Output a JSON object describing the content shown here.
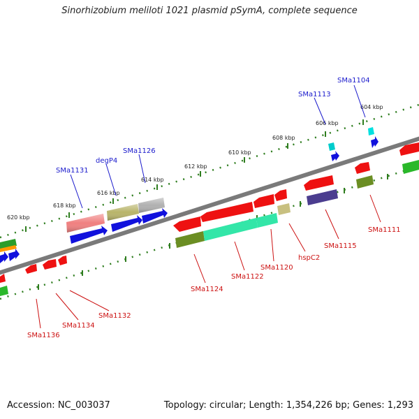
{
  "title": "Sinorhizobium meliloti 1021 plasmid pSymA, complete sequence",
  "accession": "Accession: NC_003037",
  "summary": "Topology: circular; Length: 1,354,226 bp; Genes: 1,293",
  "colors": {
    "backbone": "#808080",
    "forward_label": "#1a1acc",
    "reverse_label": "#cc1111",
    "tick": "#2e7d1e"
  },
  "kbp_labels": [
    "604 kbp",
    "606 kbp",
    "608 kbp",
    "610 kbp",
    "612 kbp",
    "614 kbp",
    "616 kbp",
    "618 kbp",
    "620 kbp"
  ],
  "forward_gene_labels": [
    "SMa1104",
    "SMa1113",
    "SMa1126",
    "degP4",
    "SMa1131"
  ],
  "reverse_gene_labels": [
    "SMa1111",
    "SMa1115",
    "hspC2",
    "SMa1120",
    "SMa1122",
    "SMa1124",
    "SMa1132",
    "SMa1134",
    "SMa1136"
  ]
}
